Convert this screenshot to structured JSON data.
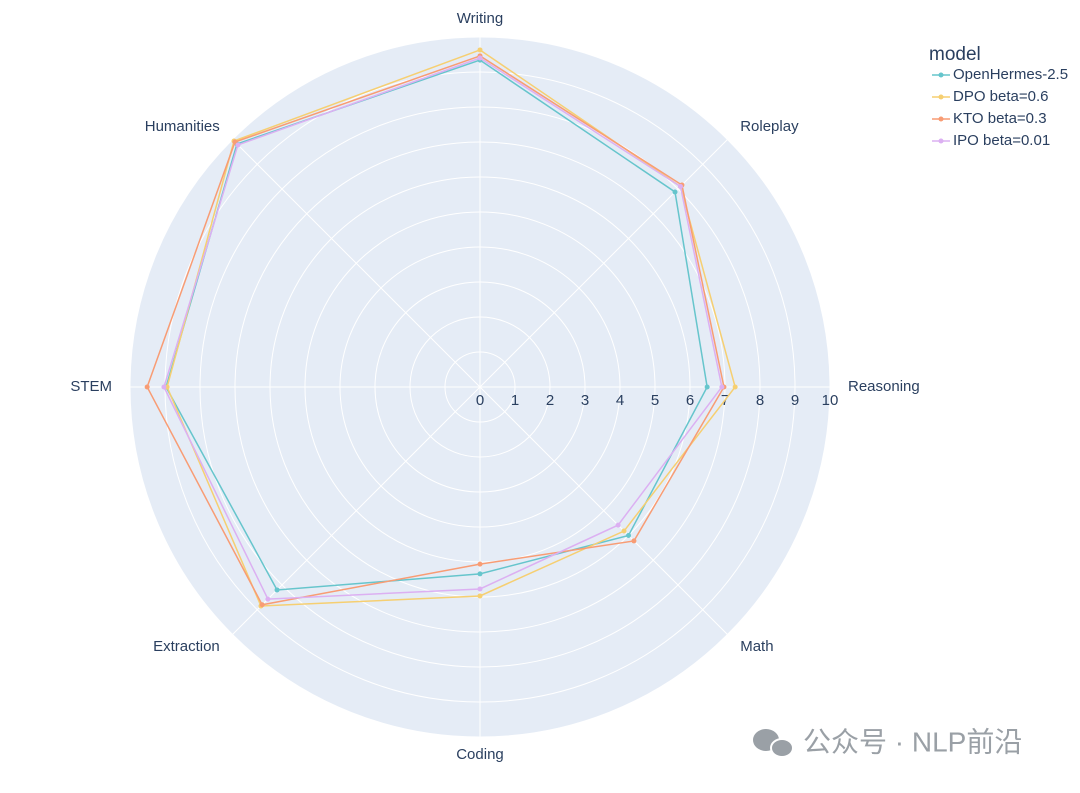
{
  "chart_data": {
    "type": "radar",
    "categories": [
      "Writing",
      "Roleplay",
      "Reasoning",
      "Math",
      "Coding",
      "Extraction",
      "STEM",
      "Humanities"
    ],
    "series": [
      {
        "name": "OpenHermes-2.5",
        "color": "#66c5cc",
        "values": [
          9.34,
          7.88,
          6.49,
          6.0,
          5.34,
          8.2,
          8.97,
          9.82
        ]
      },
      {
        "name": "DPO beta=0.6",
        "color": "#f6cf71",
        "values": [
          9.63,
          8.1,
          7.29,
          5.82,
          5.97,
          8.85,
          8.94,
          9.94
        ]
      },
      {
        "name": "KTO beta=0.3",
        "color": "#f89c74",
        "values": [
          9.46,
          8.16,
          6.97,
          6.22,
          5.06,
          8.8,
          9.51,
          9.9
        ]
      },
      {
        "name": "IPO beta=0.01",
        "color": "#dcb0f2",
        "values": [
          9.4,
          8.1,
          6.91,
          5.58,
          5.77,
          8.57,
          9.03,
          9.78
        ]
      }
    ],
    "rlim": [
      0,
      10
    ],
    "rticks": [
      0,
      1,
      2,
      3,
      4,
      5,
      6,
      7,
      8,
      9,
      10
    ],
    "legend_title": "model",
    "legend_position": "top-right",
    "grid": true
  },
  "watermark": "公众号 · NLP前沿"
}
